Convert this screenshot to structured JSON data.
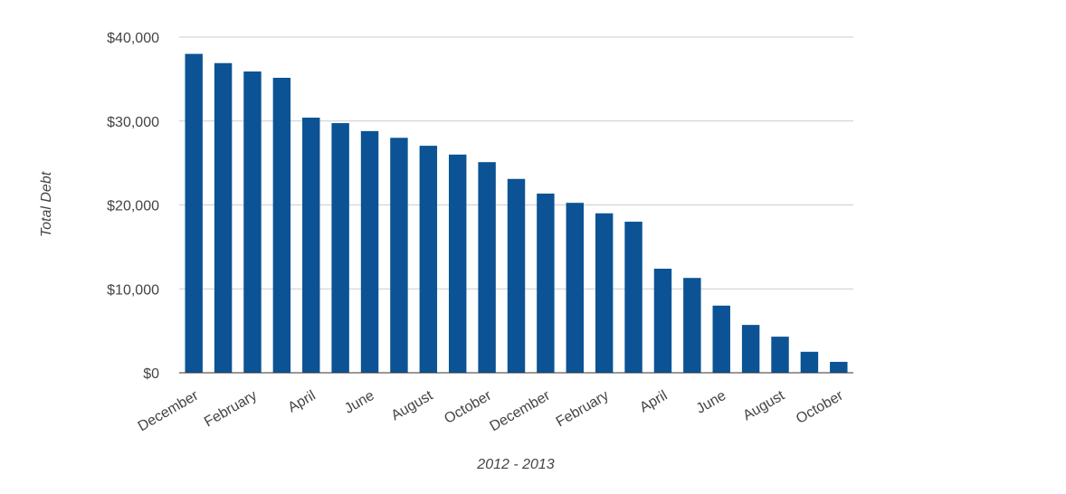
{
  "chart_data": {
    "type": "bar",
    "x_label": "2012 - 2013",
    "y_label": "Total Debt",
    "categories": [
      "December",
      null,
      "February",
      null,
      "April",
      null,
      "June",
      null,
      "August",
      null,
      "October",
      null,
      "December",
      null,
      "February",
      null,
      "April",
      null,
      "June",
      null,
      "August",
      null,
      "October"
    ],
    "values": [
      38000,
      36900,
      35900,
      35150,
      30400,
      29750,
      28800,
      28000,
      27050,
      26000,
      25100,
      23100,
      21350,
      20250,
      19000,
      18000,
      12400,
      11300,
      8000,
      5700,
      4300,
      2500,
      1300
    ],
    "color": "#0b5394",
    "ylim": [
      0,
      40000
    ],
    "yticks": [
      {
        "value": 0,
        "label": "$0"
      },
      {
        "value": 10000,
        "label": "$10,000"
      },
      {
        "value": 20000,
        "label": "$20,000"
      },
      {
        "value": 30000,
        "label": "$30,000"
      },
      {
        "value": 40000,
        "label": "$40,000"
      }
    ],
    "grid": true
  }
}
